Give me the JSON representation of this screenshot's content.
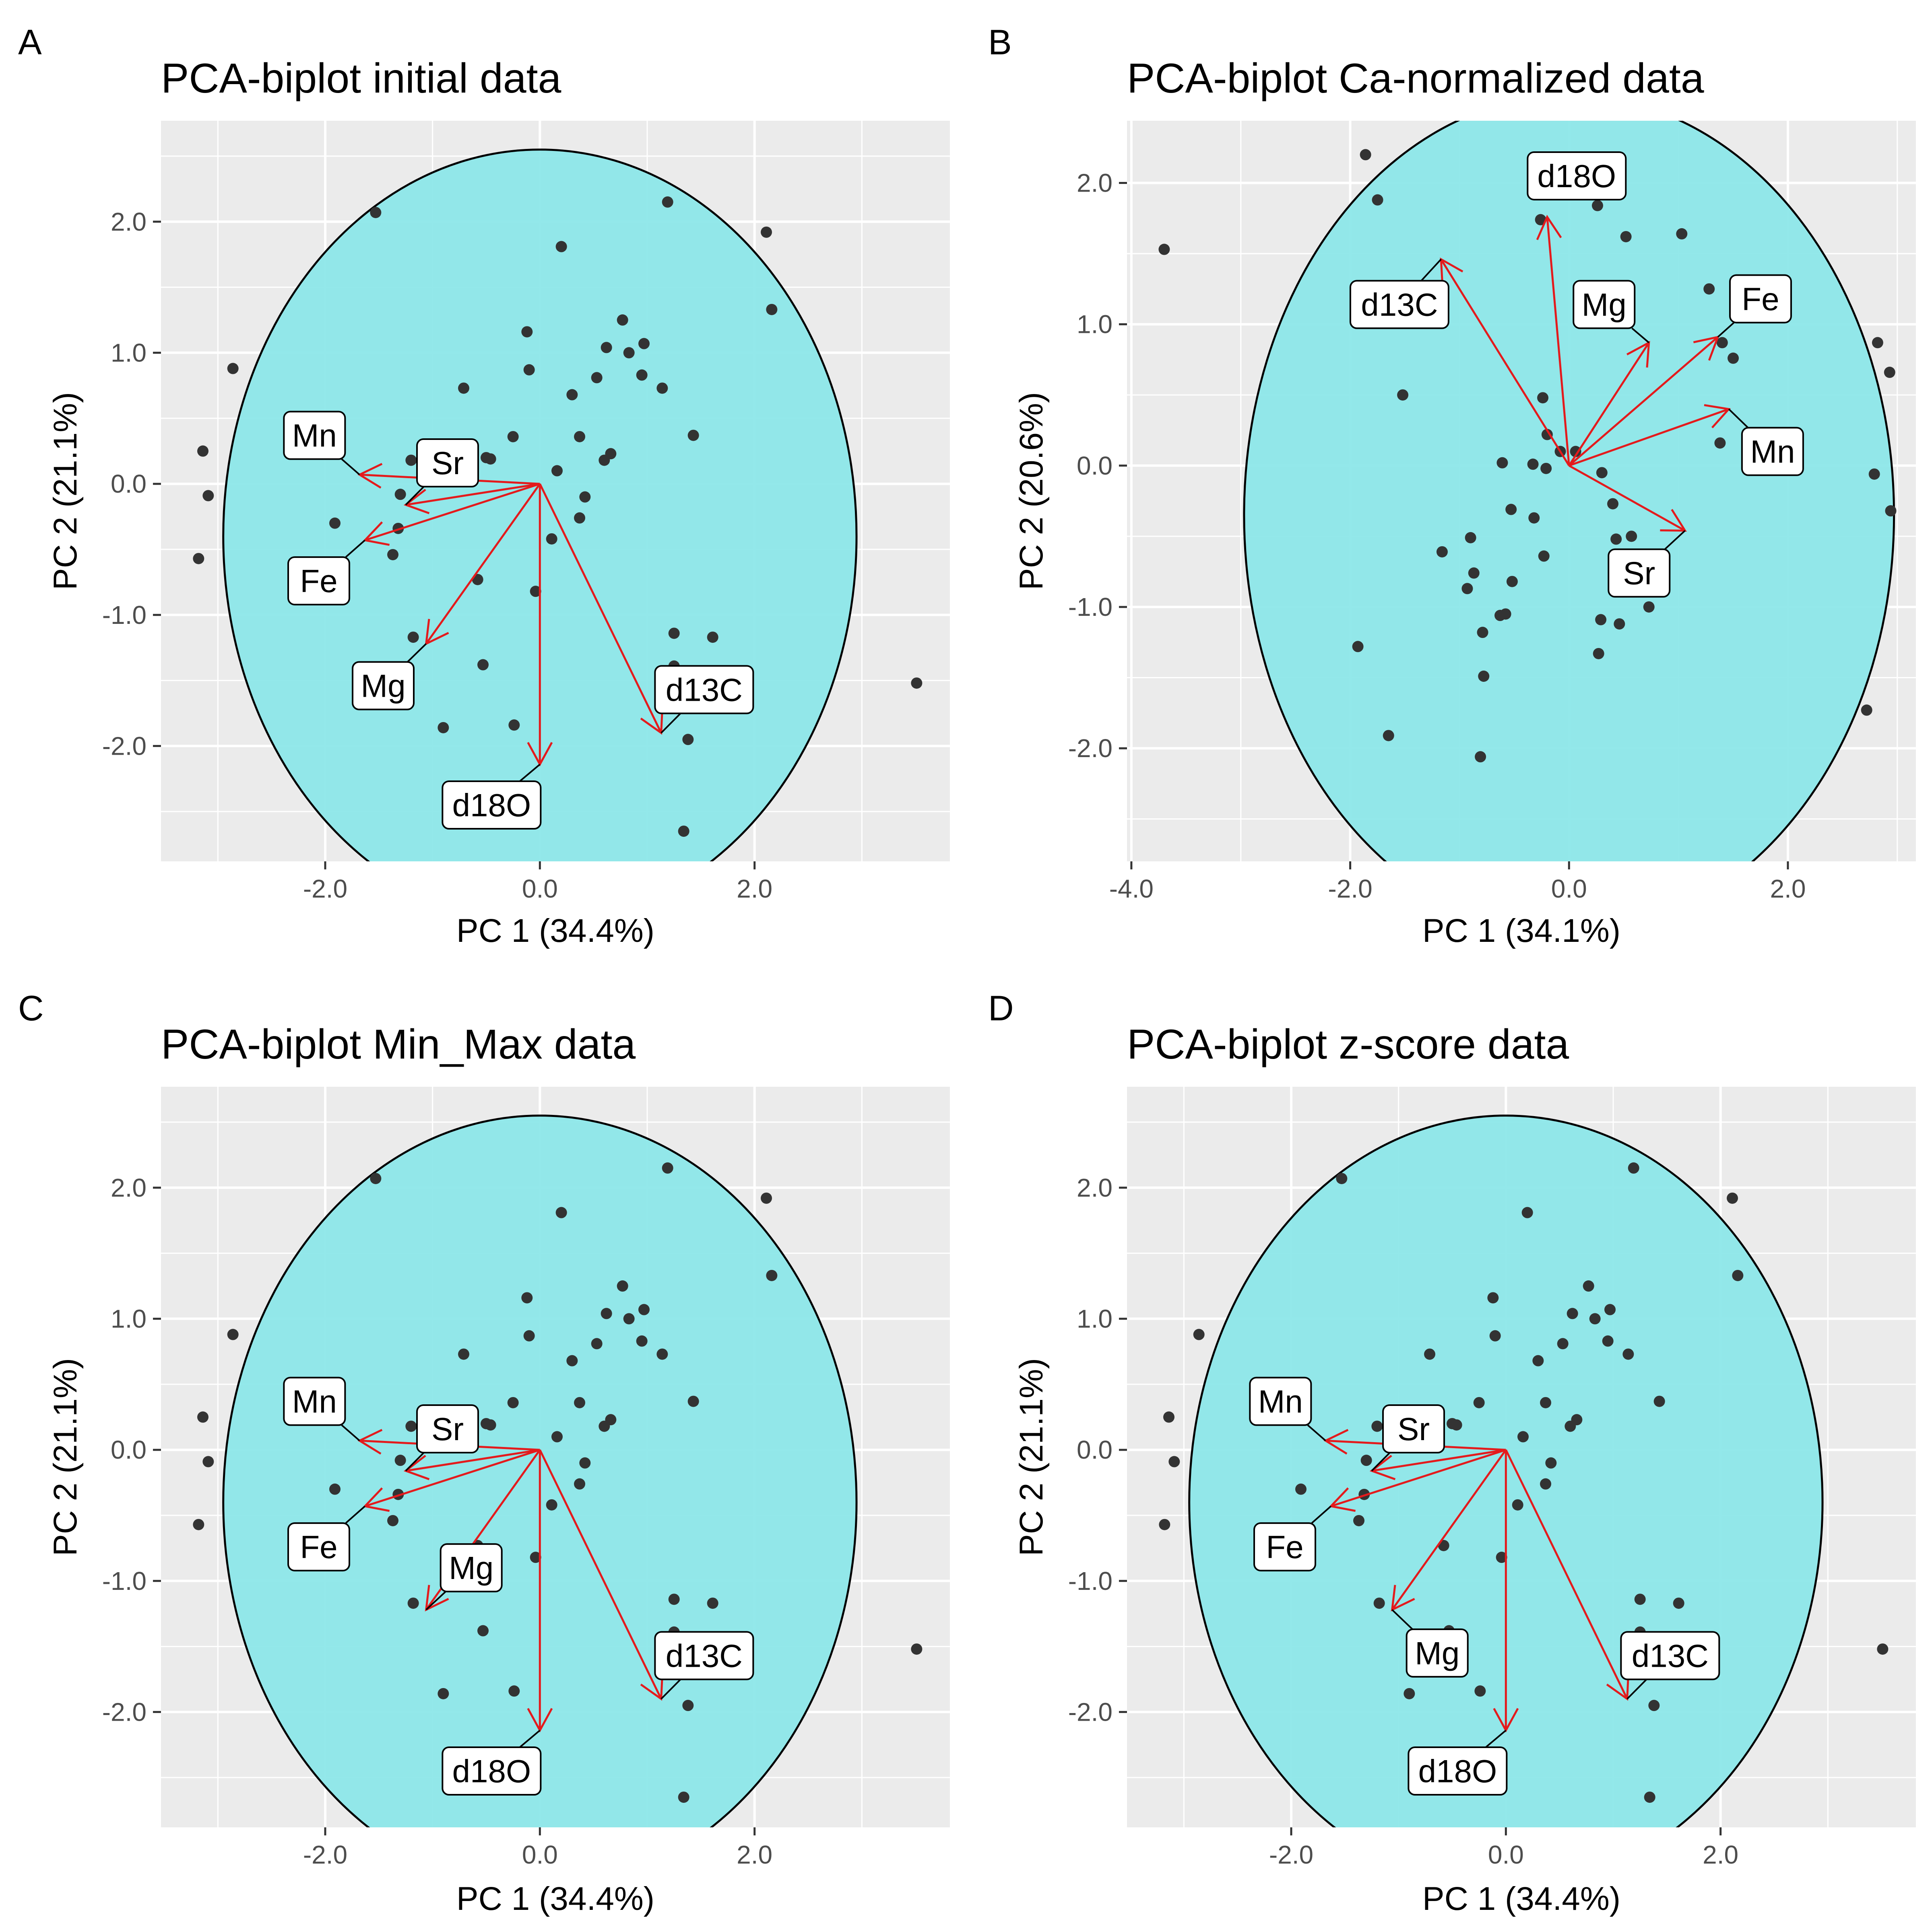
{
  "chart_data": [
    {
      "type": "scatter",
      "letter": "A",
      "title": "PCA-biplot initial data",
      "xlabel": "PC 1 (34.4%)",
      "ylabel": "PC 2 (21.1%)",
      "xlim": [
        -3.53,
        3.82
      ],
      "ylim": [
        -2.88,
        2.77
      ],
      "xticks": [
        -2.0,
        0.0,
        2.0
      ],
      "yticks": [
        -2.0,
        -1.0,
        0.0,
        1.0,
        2.0
      ],
      "xtick_labels": [
        "-2.0",
        "0.0",
        "2.0"
      ],
      "ytick_labels": [
        "-2.0",
        "-1.0",
        "0.0",
        "1.0",
        "2.0"
      ],
      "grid": true,
      "circle": {
        "center": [
          0,
          -0.4
        ],
        "radius": 2.95
      },
      "points": [
        [
          -1.53,
          2.07
        ],
        [
          1.19,
          2.15
        ],
        [
          2.11,
          1.92
        ],
        [
          2.16,
          1.33
        ],
        [
          0.2,
          1.81
        ],
        [
          -0.12,
          1.16
        ],
        [
          0.77,
          1.25
        ],
        [
          0.62,
          1.04
        ],
        [
          0.97,
          1.07
        ],
        [
          0.83,
          1.0
        ],
        [
          0.53,
          0.81
        ],
        [
          0.95,
          0.83
        ],
        [
          1.14,
          0.73
        ],
        [
          -0.71,
          0.73
        ],
        [
          -0.1,
          0.87
        ],
        [
          0.3,
          0.68
        ],
        [
          -3.14,
          0.25
        ],
        [
          -3.09,
          -0.09
        ],
        [
          -3.18,
          -0.57
        ],
        [
          -2.86,
          0.88
        ],
        [
          -1.2,
          0.18
        ],
        [
          -0.46,
          0.19
        ],
        [
          -0.5,
          0.2
        ],
        [
          -0.25,
          0.36
        ],
        [
          0.37,
          0.36
        ],
        [
          0.66,
          0.23
        ],
        [
          0.6,
          0.18
        ],
        [
          0.16,
          0.1
        ],
        [
          0.42,
          -0.1
        ],
        [
          0.37,
          -0.26
        ],
        [
          1.43,
          0.37
        ],
        [
          0.11,
          -0.42
        ],
        [
          -1.3,
          -0.08
        ],
        [
          -1.32,
          -0.34
        ],
        [
          -1.37,
          -0.54
        ],
        [
          -1.91,
          -0.3
        ],
        [
          -1.99,
          -0.77
        ],
        [
          -1.95,
          -0.78
        ],
        [
          -0.58,
          -0.73
        ],
        [
          -0.04,
          -0.82
        ],
        [
          -1.18,
          -1.17
        ],
        [
          -0.53,
          -1.38
        ],
        [
          1.25,
          -1.14
        ],
        [
          1.25,
          -1.39
        ],
        [
          1.61,
          -1.17
        ],
        [
          1.54,
          -1.55
        ],
        [
          1.38,
          -1.95
        ],
        [
          -0.9,
          -1.86
        ],
        [
          -0.24,
          -1.84
        ],
        [
          1.34,
          -2.65
        ],
        [
          3.51,
          -1.52
        ]
      ],
      "vectors": [
        {
          "label": "Mn",
          "tip": [
            -1.68,
            0.07
          ],
          "box": [
            -2.1,
            0.37
          ]
        },
        {
          "label": "Sr",
          "tip": [
            -1.25,
            -0.16
          ],
          "box": [
            -0.86,
            0.16
          ]
        },
        {
          "label": "Fe",
          "tip": [
            -1.63,
            -0.43
          ],
          "box": [
            -2.06,
            -0.74
          ]
        },
        {
          "label": "Mg",
          "tip": [
            -1.06,
            -1.22
          ],
          "box": [
            -1.46,
            -1.54
          ]
        },
        {
          "label": "d18O",
          "tip": [
            0.0,
            -2.14
          ],
          "box": [
            -0.45,
            -2.45
          ]
        },
        {
          "label": "d13C",
          "tip": [
            1.13,
            -1.9
          ],
          "box": [
            1.53,
            -1.57
          ]
        }
      ]
    },
    {
      "type": "scatter",
      "letter": "B",
      "title": "PCA-biplot Ca-normalized data",
      "xlabel": "PC 1 (34.1%)",
      "ylabel": "PC 2 (20.6%)",
      "xlim": [
        -4.04,
        3.17
      ],
      "ylim": [
        -2.8,
        2.44
      ],
      "xticks": [
        -4.0,
        -2.0,
        0.0,
        2.0
      ],
      "yticks": [
        -2.0,
        -1.0,
        0.0,
        1.0,
        2.0
      ],
      "xtick_labels": [
        "-4.0",
        "-2.0",
        "0.0",
        "2.0"
      ],
      "ytick_labels": [
        "-2.0",
        "-1.0",
        "0.0",
        "1.0",
        "2.0"
      ],
      "grid": true,
      "circle": {
        "center": [
          0,
          -0.35
        ],
        "radius": 2.97
      },
      "points": [
        [
          -3.7,
          1.53
        ],
        [
          -1.86,
          2.2
        ],
        [
          -1.75,
          1.88
        ],
        [
          -1.84,
          1.2
        ],
        [
          -1.7,
          1.26
        ],
        [
          -1.52,
          0.5
        ],
        [
          -0.26,
          1.74
        ],
        [
          0.26,
          1.84
        ],
        [
          0.52,
          1.62
        ],
        [
          1.03,
          1.64
        ],
        [
          1.64,
          1.2
        ],
        [
          1.98,
          1.26
        ],
        [
          1.4,
          0.87
        ],
        [
          1.5,
          0.76
        ],
        [
          1.28,
          1.25
        ],
        [
          2.82,
          0.87
        ],
        [
          2.93,
          0.66
        ],
        [
          2.79,
          -0.06
        ],
        [
          2.94,
          -0.32
        ],
        [
          2.72,
          -1.73
        ],
        [
          -0.24,
          0.48
        ],
        [
          -0.08,
          0.1
        ],
        [
          -0.61,
          0.02
        ],
        [
          -0.2,
          0.22
        ],
        [
          0.06,
          0.1
        ],
        [
          -0.33,
          0.01
        ],
        [
          -0.21,
          -0.02
        ],
        [
          0.3,
          -0.05
        ],
        [
          1.38,
          0.16
        ],
        [
          -0.53,
          -0.31
        ],
        [
          -0.32,
          -0.37
        ],
        [
          -0.9,
          -0.51
        ],
        [
          -1.16,
          -0.61
        ],
        [
          -0.23,
          -0.64
        ],
        [
          0.4,
          -0.27
        ],
        [
          0.43,
          -0.52
        ],
        [
          0.57,
          -0.5
        ],
        [
          -0.52,
          -0.82
        ],
        [
          -0.87,
          -0.76
        ],
        [
          -0.93,
          -0.87
        ],
        [
          -0.63,
          -1.06
        ],
        [
          -0.58,
          -1.05
        ],
        [
          -0.79,
          -1.18
        ],
        [
          0.29,
          -1.09
        ],
        [
          0.46,
          -1.12
        ],
        [
          0.73,
          -1.0
        ],
        [
          -1.93,
          -1.28
        ],
        [
          0.27,
          -1.33
        ],
        [
          -0.78,
          -1.49
        ],
        [
          -1.65,
          -1.91
        ],
        [
          -0.81,
          -2.06
        ]
      ],
      "vectors": [
        {
          "label": "d18O",
          "tip": [
            -0.2,
            1.76
          ],
          "box": [
            0.07,
            2.05
          ]
        },
        {
          "label": "d13C",
          "tip": [
            -1.17,
            1.46
          ],
          "box": [
            -1.55,
            1.14
          ]
        },
        {
          "label": "Mg",
          "tip": [
            0.73,
            0.87
          ],
          "box": [
            0.32,
            1.14
          ]
        },
        {
          "label": "Fe",
          "tip": [
            1.36,
            0.91
          ],
          "box": [
            1.75,
            1.18
          ]
        },
        {
          "label": "Mn",
          "tip": [
            1.46,
            0.4
          ],
          "box": [
            1.86,
            0.1
          ]
        },
        {
          "label": "Sr",
          "tip": [
            1.06,
            -0.46
          ],
          "box": [
            0.64,
            -0.76
          ]
        }
      ]
    },
    {
      "type": "scatter",
      "letter": "C",
      "title": "PCA-biplot Min_Max data",
      "xlabel": "PC 1 (34.4%)",
      "ylabel": "PC 2 (21.1%)",
      "xlim": [
        -3.53,
        3.82
      ],
      "ylim": [
        -2.88,
        2.77
      ],
      "xticks": [
        -2.0,
        0.0,
        2.0
      ],
      "yticks": [
        -2.0,
        -1.0,
        0.0,
        1.0,
        2.0
      ],
      "xtick_labels": [
        "-2.0",
        "0.0",
        "2.0"
      ],
      "ytick_labels": [
        "-2.0",
        "-1.0",
        "0.0",
        "1.0",
        "2.0"
      ],
      "grid": true,
      "circle": {
        "center": [
          0,
          -0.4
        ],
        "radius": 2.95
      },
      "points": [
        [
          -1.53,
          2.07
        ],
        [
          1.19,
          2.15
        ],
        [
          2.11,
          1.92
        ],
        [
          2.16,
          1.33
        ],
        [
          0.2,
          1.81
        ],
        [
          -0.12,
          1.16
        ],
        [
          0.77,
          1.25
        ],
        [
          0.62,
          1.04
        ],
        [
          0.97,
          1.07
        ],
        [
          0.83,
          1.0
        ],
        [
          0.53,
          0.81
        ],
        [
          0.95,
          0.83
        ],
        [
          1.14,
          0.73
        ],
        [
          -0.71,
          0.73
        ],
        [
          -0.1,
          0.87
        ],
        [
          0.3,
          0.68
        ],
        [
          -3.14,
          0.25
        ],
        [
          -3.09,
          -0.09
        ],
        [
          -3.18,
          -0.57
        ],
        [
          -2.86,
          0.88
        ],
        [
          -1.2,
          0.18
        ],
        [
          -0.46,
          0.19
        ],
        [
          -0.5,
          0.2
        ],
        [
          -0.25,
          0.36
        ],
        [
          0.37,
          0.36
        ],
        [
          0.66,
          0.23
        ],
        [
          0.6,
          0.18
        ],
        [
          0.16,
          0.1
        ],
        [
          0.42,
          -0.1
        ],
        [
          0.37,
          -0.26
        ],
        [
          1.43,
          0.37
        ],
        [
          0.11,
          -0.42
        ],
        [
          -1.3,
          -0.08
        ],
        [
          -1.32,
          -0.34
        ],
        [
          -1.37,
          -0.54
        ],
        [
          -1.91,
          -0.3
        ],
        [
          -1.99,
          -0.77
        ],
        [
          -1.95,
          -0.78
        ],
        [
          -0.58,
          -0.73
        ],
        [
          -0.04,
          -0.82
        ],
        [
          -1.18,
          -1.17
        ],
        [
          -0.53,
          -1.38
        ],
        [
          1.25,
          -1.14
        ],
        [
          1.25,
          -1.39
        ],
        [
          1.61,
          -1.17
        ],
        [
          1.54,
          -1.55
        ],
        [
          1.38,
          -1.95
        ],
        [
          -0.9,
          -1.86
        ],
        [
          -0.24,
          -1.84
        ],
        [
          1.34,
          -2.65
        ],
        [
          3.51,
          -1.52
        ]
      ],
      "vectors": [
        {
          "label": "Mn",
          "tip": [
            -1.68,
            0.07
          ],
          "box": [
            -2.1,
            0.37
          ]
        },
        {
          "label": "Sr",
          "tip": [
            -1.25,
            -0.16
          ],
          "box": [
            -0.86,
            0.16
          ]
        },
        {
          "label": "Fe",
          "tip": [
            -1.63,
            -0.43
          ],
          "box": [
            -2.06,
            -0.74
          ]
        },
        {
          "label": "Mg",
          "tip": [
            -1.06,
            -1.22
          ],
          "box": [
            -0.64,
            -0.9
          ]
        },
        {
          "label": "d18O",
          "tip": [
            0.0,
            -2.14
          ],
          "box": [
            -0.45,
            -2.45
          ]
        },
        {
          "label": "d13C",
          "tip": [
            1.13,
            -1.9
          ],
          "box": [
            1.53,
            -1.57
          ]
        }
      ]
    },
    {
      "type": "scatter",
      "letter": "D",
      "title": "PCA-biplot z-score data",
      "xlabel": "PC 1 (34.4%)",
      "ylabel": "PC 2 (21.1%)",
      "xlim": [
        -3.53,
        3.82
      ],
      "ylim": [
        -2.88,
        2.77
      ],
      "xticks": [
        -2.0,
        0.0,
        2.0
      ],
      "yticks": [
        -2.0,
        -1.0,
        0.0,
        1.0,
        2.0
      ],
      "xtick_labels": [
        "-2.0",
        "0.0",
        "2.0"
      ],
      "ytick_labels": [
        "-2.0",
        "-1.0",
        "0.0",
        "1.0",
        "2.0"
      ],
      "grid": true,
      "circle": {
        "center": [
          0,
          -0.4
        ],
        "radius": 2.95
      },
      "points": [
        [
          -1.53,
          2.07
        ],
        [
          1.19,
          2.15
        ],
        [
          2.11,
          1.92
        ],
        [
          2.16,
          1.33
        ],
        [
          0.2,
          1.81
        ],
        [
          -0.12,
          1.16
        ],
        [
          0.77,
          1.25
        ],
        [
          0.62,
          1.04
        ],
        [
          0.97,
          1.07
        ],
        [
          0.83,
          1.0
        ],
        [
          0.53,
          0.81
        ],
        [
          0.95,
          0.83
        ],
        [
          1.14,
          0.73
        ],
        [
          -0.71,
          0.73
        ],
        [
          -0.1,
          0.87
        ],
        [
          0.3,
          0.68
        ],
        [
          -3.14,
          0.25
        ],
        [
          -3.09,
          -0.09
        ],
        [
          -3.18,
          -0.57
        ],
        [
          -2.86,
          0.88
        ],
        [
          -1.2,
          0.18
        ],
        [
          -0.46,
          0.19
        ],
        [
          -0.5,
          0.2
        ],
        [
          -0.25,
          0.36
        ],
        [
          0.37,
          0.36
        ],
        [
          0.66,
          0.23
        ],
        [
          0.6,
          0.18
        ],
        [
          0.16,
          0.1
        ],
        [
          0.42,
          -0.1
        ],
        [
          0.37,
          -0.26
        ],
        [
          1.43,
          0.37
        ],
        [
          0.11,
          -0.42
        ],
        [
          -1.3,
          -0.08
        ],
        [
          -1.32,
          -0.34
        ],
        [
          -1.37,
          -0.54
        ],
        [
          -1.91,
          -0.3
        ],
        [
          -1.99,
          -0.77
        ],
        [
          -1.95,
          -0.78
        ],
        [
          -0.58,
          -0.73
        ],
        [
          -0.04,
          -0.82
        ],
        [
          -1.18,
          -1.17
        ],
        [
          -0.53,
          -1.38
        ],
        [
          1.25,
          -1.14
        ],
        [
          1.25,
          -1.39
        ],
        [
          1.61,
          -1.17
        ],
        [
          1.54,
          -1.55
        ],
        [
          1.38,
          -1.95
        ],
        [
          -0.9,
          -1.86
        ],
        [
          -0.24,
          -1.84
        ],
        [
          1.34,
          -2.65
        ],
        [
          3.51,
          -1.52
        ]
      ],
      "vectors": [
        {
          "label": "Mn",
          "tip": [
            -1.68,
            0.07
          ],
          "box": [
            -2.1,
            0.37
          ]
        },
        {
          "label": "Sr",
          "tip": [
            -1.25,
            -0.16
          ],
          "box": [
            -0.86,
            0.16
          ]
        },
        {
          "label": "Fe",
          "tip": [
            -1.63,
            -0.43
          ],
          "box": [
            -2.06,
            -0.74
          ]
        },
        {
          "label": "Mg",
          "tip": [
            -1.06,
            -1.22
          ],
          "box": [
            -0.64,
            -1.55
          ]
        },
        {
          "label": "d18O",
          "tip": [
            0.0,
            -2.14
          ],
          "box": [
            -0.45,
            -2.45
          ]
        },
        {
          "label": "d13C",
          "tip": [
            1.13,
            -1.9
          ],
          "box": [
            1.53,
            -1.57
          ]
        }
      ]
    }
  ],
  "colors": {
    "panel_bg": "#ebebeb",
    "grid": "#ffffff",
    "circle_fill": "#8ae6e8",
    "circle_stroke": "#000000",
    "point": "#333333",
    "arrow": "#e41a1c",
    "label_box": "#ffffff"
  }
}
